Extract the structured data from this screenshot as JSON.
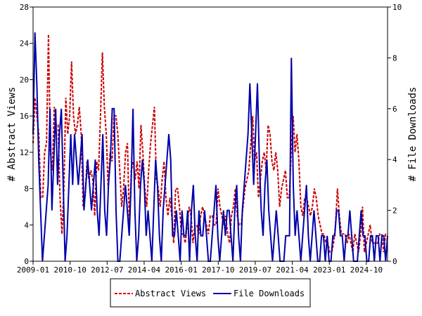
{
  "chart_data": {
    "type": "line",
    "title": "",
    "xlabel": "",
    "ylabel": "# Abstract Views",
    "y2label": "# File Downloads",
    "x_tick_labels": [
      "2009-01",
      "2010-10",
      "2012-07",
      "2014-04",
      "2016-01",
      "2017-10",
      "2019-07",
      "2021-04",
      "2023-01",
      "2024-10"
    ],
    "x_range": [
      "2009-01",
      "2025-10"
    ],
    "ylim": [
      0,
      28
    ],
    "y_ticks": [
      0,
      4,
      8,
      12,
      16,
      20,
      24,
      28
    ],
    "y2lim": [
      0,
      10
    ],
    "y2_ticks": [
      0,
      2,
      4,
      6,
      8,
      10
    ],
    "grid": false,
    "legend_position": "bottom",
    "series": [
      {
        "name": "Abstract Views",
        "color": "#cc0000",
        "dash": "dashed",
        "axis": "left",
        "values": [
          13,
          18,
          16,
          14,
          7,
          7,
          12,
          13,
          25,
          12,
          10,
          17,
          15,
          15,
          7,
          3,
          8,
          18,
          14,
          16,
          22,
          16,
          14,
          15,
          17,
          14,
          6,
          7,
          11,
          9,
          10,
          9,
          5,
          11,
          10,
          16,
          23,
          17,
          14,
          8,
          12,
          11,
          16,
          16,
          14,
          10,
          6,
          8,
          12,
          13,
          4,
          10,
          11,
          9,
          11,
          8,
          15,
          12,
          8,
          6,
          10,
          13,
          15,
          17,
          9,
          8,
          6,
          9,
          11,
          7,
          5,
          7,
          5,
          2,
          8,
          8,
          6,
          3,
          3,
          2,
          4,
          6,
          5,
          2,
          4,
          4,
          3,
          5,
          6,
          5,
          4,
          3,
          5,
          5,
          4,
          4,
          8,
          6,
          5,
          4,
          5,
          3,
          2,
          5,
          6,
          8,
          5,
          4,
          4,
          6,
          8,
          9,
          10,
          13,
          16,
          11,
          12,
          7,
          9,
          11,
          12,
          10,
          15,
          14,
          11,
          10,
          12,
          10,
          6,
          8,
          9,
          10,
          7,
          7,
          12,
          16,
          12,
          14,
          11,
          6,
          5,
          7,
          7,
          6,
          5,
          6,
          8,
          7,
          5,
          4,
          3,
          3,
          2,
          2,
          1,
          1,
          2,
          4,
          8,
          5,
          3,
          3,
          3,
          2,
          3,
          2,
          1,
          3,
          2,
          1,
          3,
          6,
          1,
          2,
          3,
          4,
          2,
          2,
          2,
          2,
          3,
          3,
          1,
          3,
          3
        ]
      },
      {
        "name": "File Downloads",
        "color": "#0000aa",
        "dash": "solid",
        "axis": "right",
        "values": [
          5,
          9,
          7,
          4,
          2,
          0,
          1,
          2,
          3,
          6,
          2,
          4,
          6,
          3,
          5,
          6,
          3,
          0,
          1,
          3,
          5,
          3,
          5,
          4,
          3,
          4,
          5,
          2,
          3,
          4,
          3,
          2,
          3,
          4,
          2,
          1,
          3,
          5,
          2,
          1,
          3,
          4,
          6,
          6,
          2,
          0,
          0,
          1,
          2,
          3,
          2,
          1,
          3,
          6,
          2,
          0,
          1,
          3,
          4,
          3,
          1,
          2,
          1,
          0,
          2,
          4,
          3,
          1,
          0,
          2,
          3,
          4,
          5,
          4,
          1,
          1,
          2,
          1,
          0,
          2,
          1,
          1,
          2,
          0,
          2,
          3,
          1,
          0,
          2,
          1,
          1,
          2,
          1,
          0,
          0,
          1,
          2,
          3,
          1,
          0,
          1,
          2,
          1,
          2,
          2,
          1,
          0,
          2,
          3,
          1,
          0,
          2,
          3,
          4,
          5,
          7,
          5,
          3,
          5,
          7,
          4,
          2,
          1,
          3,
          4,
          2,
          1,
          0,
          1,
          2,
          1,
          0,
          0,
          0,
          1,
          1,
          1,
          8,
          3,
          1,
          2,
          1,
          0,
          1,
          2,
          3,
          1,
          0,
          1,
          2,
          1,
          0,
          0,
          1,
          1,
          0,
          1,
          0,
          0,
          1,
          1,
          2,
          2,
          1,
          1,
          0,
          1,
          1,
          2,
          1,
          0,
          0,
          0,
          1,
          2,
          1,
          1,
          0,
          0,
          1,
          1,
          0,
          1,
          1,
          0,
          1,
          1,
          0,
          1
        ]
      }
    ]
  }
}
